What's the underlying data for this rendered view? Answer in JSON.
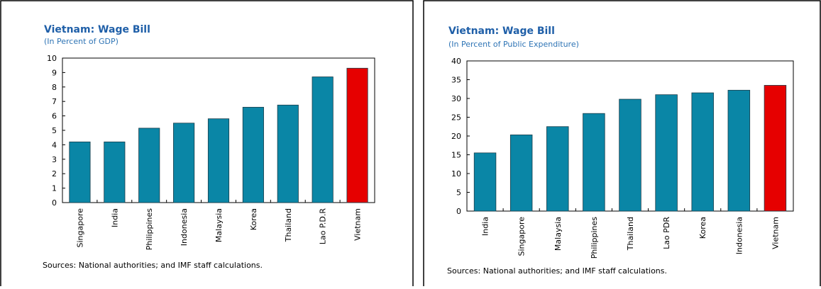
{
  "chart_data": [
    {
      "type": "bar",
      "title": "Vietnam: Wage Bill",
      "subtitle": "(In Percent of GDP)",
      "categories": [
        "Singapore",
        "India",
        "Philippines",
        "Indonesia",
        "Malaysia",
        "Korea",
        "Thailand",
        "Lao P.D.R",
        "Vietnam"
      ],
      "values": [
        4.2,
        4.2,
        5.15,
        5.5,
        5.8,
        6.6,
        6.75,
        8.7,
        9.3
      ],
      "colors": [
        "#0a86a6",
        "#0a86a6",
        "#0a86a6",
        "#0a86a6",
        "#0a86a6",
        "#0a86a6",
        "#0a86a6",
        "#0a86a6",
        "#e60000"
      ],
      "ylim": [
        0,
        10
      ],
      "yticks": [
        0,
        1,
        2,
        3,
        4,
        5,
        6,
        7,
        8,
        9,
        10
      ],
      "source": "Sources: National authorities; and IMF staff calculations."
    },
    {
      "type": "bar",
      "title": "Vietnam: Wage Bill",
      "subtitle": "(In Percent of Public Expenditure)",
      "categories": [
        "India",
        "Singapore",
        "Malaysia",
        "Philippines",
        "Thailand",
        "Lao PDR",
        "Korea",
        "Indonesia",
        "Vietnam"
      ],
      "values": [
        15.5,
        20.3,
        22.5,
        26,
        29.8,
        31,
        31.5,
        32.2,
        33.5
      ],
      "colors": [
        "#0a86a6",
        "#0a86a6",
        "#0a86a6",
        "#0a86a6",
        "#0a86a6",
        "#0a86a6",
        "#0a86a6",
        "#0a86a6",
        "#e60000"
      ],
      "ylim": [
        0,
        40
      ],
      "yticks": [
        0,
        5,
        10,
        15,
        20,
        25,
        30,
        35,
        40
      ],
      "source": "Sources: National authorities; and IMF staff calculations."
    }
  ]
}
